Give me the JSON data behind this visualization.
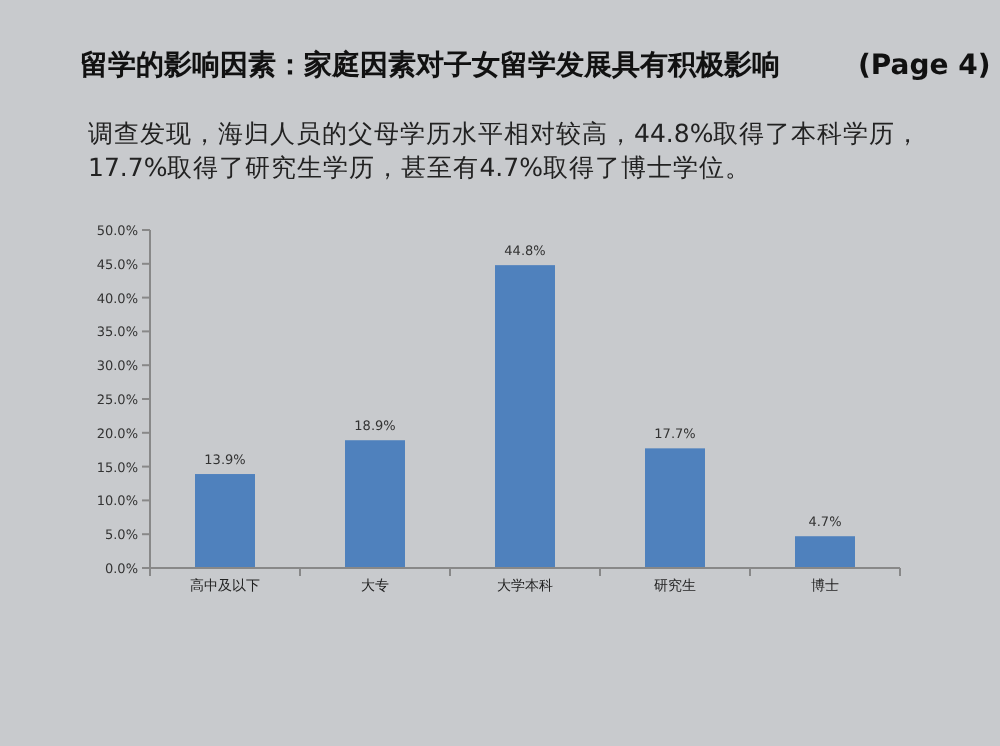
{
  "chart_data": {
    "type": "bar",
    "title": "留学的影响因素：家庭因素对子女留学发展具有积极影响        (Page 4)",
    "subtitle": "调查发现，海归人员的父母学历水平相对较高，44.8%取得了本科学历，17.7%取得了研究生学历，甚至有4.7%取得了博士学位。",
    "categories": [
      "高中及以下",
      "大专",
      "大学本科",
      "研究生",
      "博士"
    ],
    "values": [
      13.9,
      18.9,
      44.8,
      17.7,
      4.7
    ],
    "value_labels": [
      "13.9%",
      "18.9%",
      "44.8%",
      "17.7%",
      "4.7%"
    ],
    "color": "#4f81bd",
    "ylim": [
      0,
      50
    ],
    "yticks": [
      {
        "value": 0,
        "label": "0.0%"
      },
      {
        "value": 5,
        "label": "5.0%"
      },
      {
        "value": 10,
        "label": "10.0%"
      },
      {
        "value": 15,
        "label": "15.0%"
      },
      {
        "value": 20,
        "label": "20.0%"
      },
      {
        "value": 25,
        "label": "25.0%"
      },
      {
        "value": 30,
        "label": "30.0%"
      },
      {
        "value": 35,
        "label": "35.0%"
      },
      {
        "value": 40,
        "label": "40.0%"
      },
      {
        "value": 45,
        "label": "45.0%"
      },
      {
        "value": 50,
        "label": "50.0%"
      }
    ],
    "grid": false
  }
}
